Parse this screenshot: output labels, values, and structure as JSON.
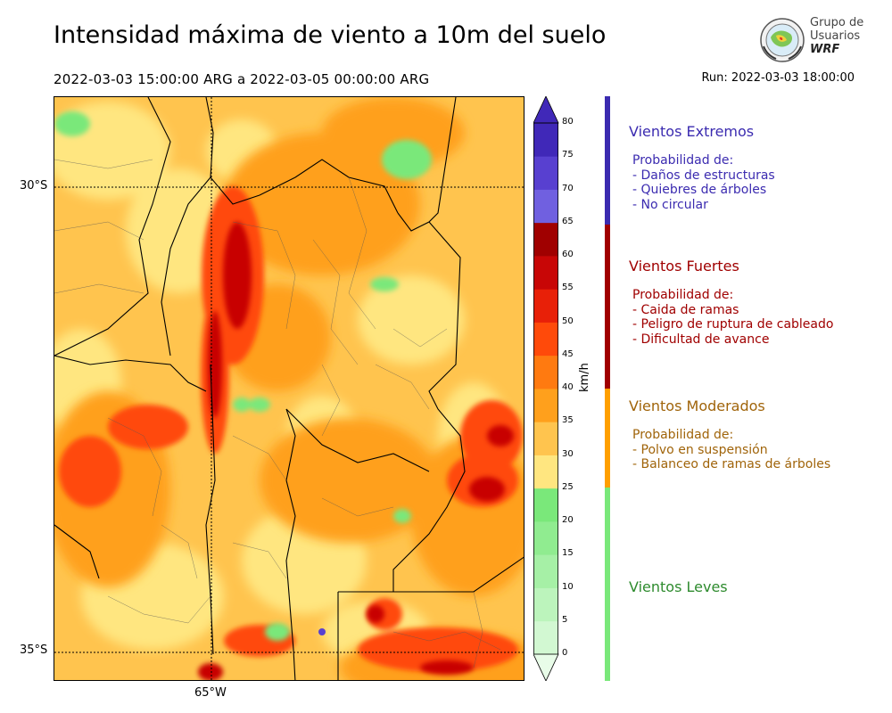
{
  "header": {
    "title": "Intensidad máxima de viento a 10m del suelo",
    "period": "2022-03-03 15:00:00 ARG  a  2022-03-05 00:00:00 ARG",
    "run": "Run: 2022-03-03 18:00:00"
  },
  "logo": {
    "line1": "Grupo de",
    "line2": "Usuarios",
    "line3": "WRF",
    "icon": "globe-emblem-icon"
  },
  "map": {
    "lat_labels": [
      "30°S",
      "35°S"
    ],
    "lon_labels": [
      "65°W"
    ]
  },
  "colorbar": {
    "unit": "km/h",
    "ticks": [
      "0",
      "5",
      "10",
      "15",
      "20",
      "25",
      "30",
      "35",
      "40",
      "45",
      "50",
      "55",
      "60",
      "65",
      "70",
      "75",
      "80"
    ],
    "colors": [
      "#e8fce8",
      "#d2f8d2",
      "#bcf4bc",
      "#a6f0a6",
      "#90ec90",
      "#7ae87a",
      "#ffe680",
      "#ffc44e",
      "#ffa01c",
      "#ff7a10",
      "#ff4a0a",
      "#e82008",
      "#c80606",
      "#a00000",
      "#7060e0",
      "#5840d0",
      "#4028b8"
    ]
  },
  "legend": [
    {
      "title": "Vientos Extremos",
      "color": "#3b2bb0",
      "body": [
        "Probabilidad de:",
        "- Daños de estructuras",
        "- Quiebres de árboles",
        "- No circular"
      ]
    },
    {
      "title": "Vientos Fuertes",
      "color": "#a00000",
      "body": [
        "Probabilidad de:",
        "- Caida de ramas",
        "- Peligro de ruptura de cableado",
        "- Dificultad de avance"
      ]
    },
    {
      "title": "Vientos Moderados",
      "color": "#a0640a",
      "body": [
        "Probabilidad de:",
        "- Polvo en suspensión",
        "- Balanceo de ramas de árboles"
      ]
    },
    {
      "title": "Vientos Leves",
      "color": "#2e8b2e",
      "body": []
    }
  ]
}
